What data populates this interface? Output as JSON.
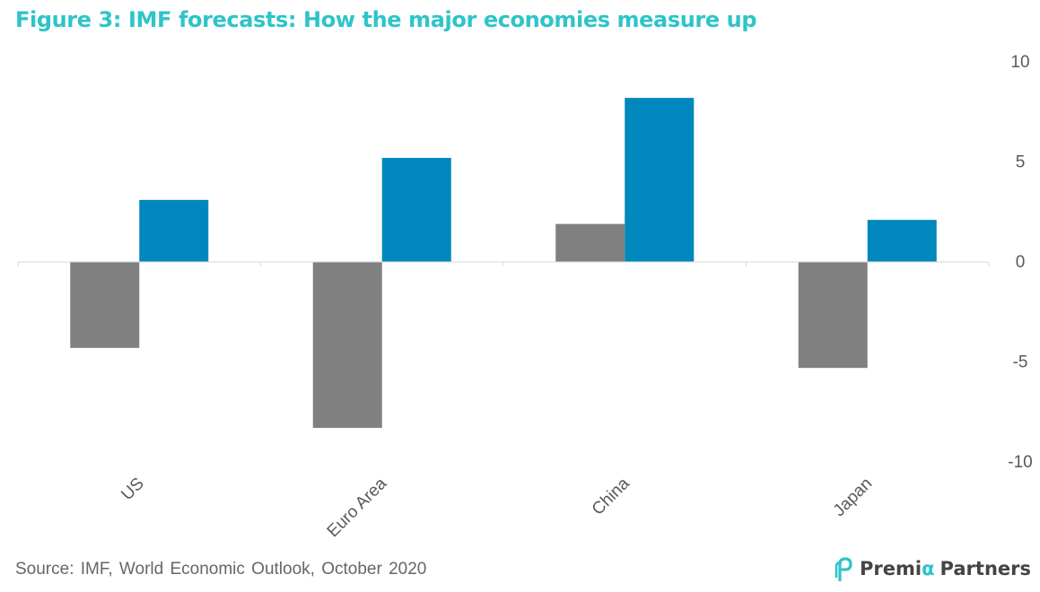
{
  "title": "Figure 3: IMF forecasts: How the major economies measure up",
  "source": "Source: IMF, World Economic Outlook, October 2020",
  "logo": {
    "name_part1": "Premi",
    "name_alpha": "α",
    "name_part2": "Partners"
  },
  "colors": {
    "title": "#2ec4c9",
    "series_1": "#808080",
    "series_2": "#0087bd",
    "axis": "#d9d9d9",
    "text": "#595959"
  },
  "chart_data": {
    "type": "bar",
    "categories": [
      "US",
      "Euro Area",
      "China",
      "Japan"
    ],
    "series": [
      {
        "values": [
          -4.3,
          -8.3,
          1.9,
          -5.3
        ]
      },
      {
        "values": [
          3.1,
          5.2,
          8.2,
          2.1
        ]
      }
    ],
    "ylim": [
      -10,
      10
    ],
    "yticks": [
      10,
      5,
      0,
      -5,
      -10
    ],
    "y_axis_side": "right",
    "legend": "none",
    "grid": false
  }
}
